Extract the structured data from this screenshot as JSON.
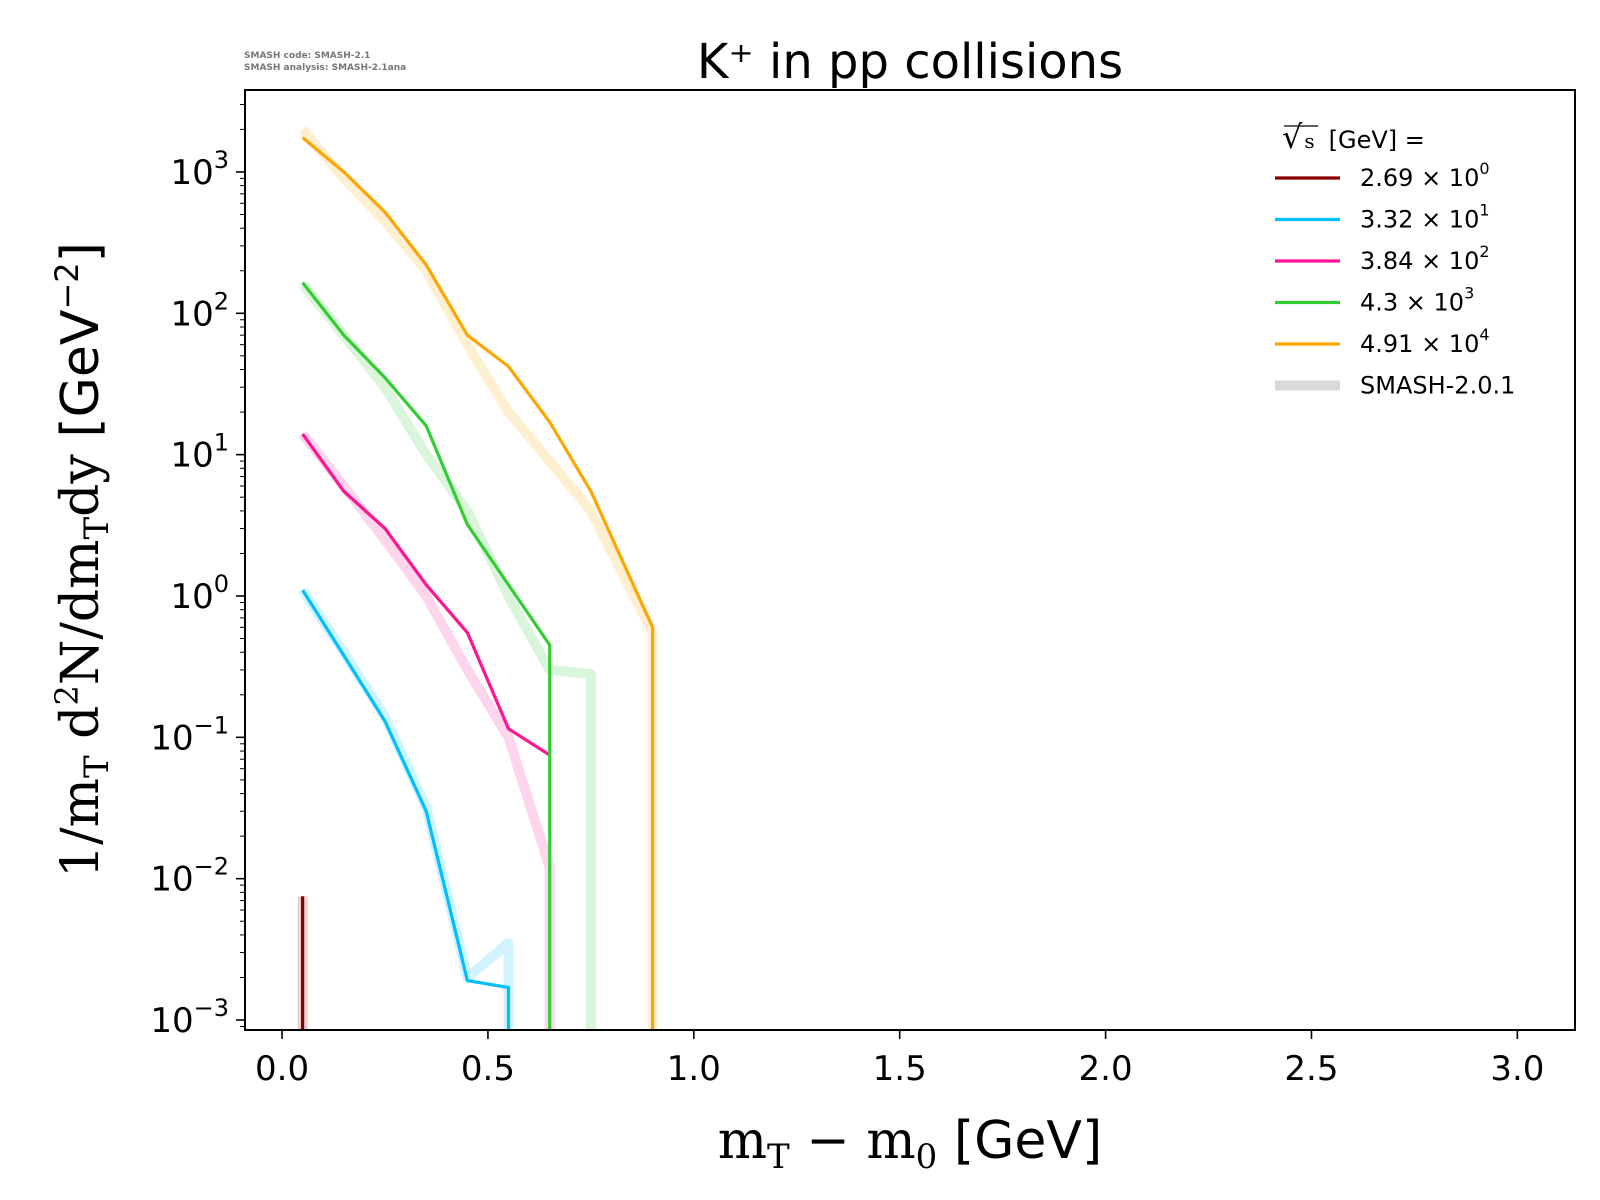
{
  "meta": {
    "code_line": "SMASH code:      SMASH-2.1",
    "analysis_line": "SMASH analysis: SMASH-2.1ana"
  },
  "chart_data": {
    "type": "line",
    "title": "K⁺ in pp collisions",
    "xlabel": "mT − m0 [GeV]",
    "ylabel": "1/mT d²N/dmTdy [GeV⁻²]",
    "yscale": "log",
    "xlim": [
      -0.09,
      3.14
    ],
    "ylim": [
      0.00085,
      3800
    ],
    "x_ticks": [
      0.0,
      0.5,
      1.0,
      1.5,
      2.0,
      2.5,
      3.0
    ],
    "x_tick_labels": [
      "0.0",
      "0.5",
      "1.0",
      "1.5",
      "2.0",
      "2.5",
      "3.0"
    ],
    "y_ticks": [
      0.001,
      0.01,
      0.1,
      1,
      10,
      100,
      1000
    ],
    "y_tick_labels": [
      [
        "10",
        "−3"
      ],
      [
        "10",
        "−2"
      ],
      [
        "10",
        "−1"
      ],
      [
        "10",
        "0"
      ],
      [
        "10",
        "1"
      ],
      [
        "10",
        "2"
      ],
      [
        "10",
        "3"
      ]
    ],
    "legend": {
      "title": "√s  [GeV] =",
      "sqrt_symbol": "√",
      "sqrt_var": "s",
      "title_rest": "[GeV] =",
      "position": "top-right",
      "reference_label": "SMASH-2.0.1",
      "reference_color": "#d9d9d9"
    },
    "series": [
      {
        "name": "2.69 × 10⁰",
        "mantissa": "2.69",
        "exponent": "0",
        "color": "#8b0000",
        "x": [
          0.05,
          0.05
        ],
        "y": [
          0.0075,
          0.0006
        ],
        "ref_x": [
          0.05,
          0.05
        ],
        "ref_y": [
          0.0075,
          0.0006
        ]
      },
      {
        "name": "3.32 × 10¹",
        "mantissa": "3.32",
        "exponent": "1",
        "color": "#00bfff",
        "x": [
          0.05,
          0.15,
          0.25,
          0.35,
          0.45,
          0.55,
          0.55
        ],
        "y": [
          1.1,
          0.38,
          0.13,
          0.03,
          0.0019,
          0.0017,
          0.0006
        ],
        "ref_x": [
          0.05,
          0.15,
          0.25,
          0.35,
          0.45,
          0.55,
          0.55
        ],
        "ref_y": [
          1.1,
          0.4,
          0.14,
          0.032,
          0.002,
          0.0035,
          0.0006
        ]
      },
      {
        "name": "3.84 × 10²",
        "mantissa": "3.84",
        "exponent": "2",
        "color": "#ff1493",
        "x": [
          0.05,
          0.15,
          0.25,
          0.35,
          0.45,
          0.55,
          0.65
        ],
        "y": [
          14,
          5.5,
          3.0,
          1.2,
          0.55,
          0.115,
          0.075
        ],
        "ref_x": [
          0.05,
          0.15,
          0.25,
          0.35,
          0.45,
          0.55,
          0.65,
          0.65
        ],
        "ref_y": [
          14,
          6.0,
          2.5,
          1.0,
          0.3,
          0.1,
          0.012,
          0.0006
        ]
      },
      {
        "name": "4.3 × 10³",
        "mantissa": "4.3",
        "exponent": "3",
        "color": "#32cd32",
        "x": [
          0.05,
          0.15,
          0.25,
          0.35,
          0.45,
          0.55,
          0.65,
          0.65
        ],
        "y": [
          165,
          70,
          35,
          16,
          3.2,
          1.2,
          0.45,
          0.0006
        ],
        "ref_x": [
          0.05,
          0.15,
          0.25,
          0.35,
          0.45,
          0.55,
          0.65,
          0.75,
          0.75
        ],
        "ref_y": [
          160,
          70,
          30,
          10,
          4.0,
          1.0,
          0.3,
          0.28,
          0.0006
        ]
      },
      {
        "name": "4.91 × 10⁴",
        "mantissa": "4.91",
        "exponent": "4",
        "color": "#ffa500",
        "x": [
          0.05,
          0.15,
          0.25,
          0.35,
          0.45,
          0.55,
          0.65,
          0.75,
          0.9,
          0.9
        ],
        "y": [
          1750,
          1000,
          520,
          220,
          70,
          42,
          17,
          5.5,
          0.6,
          0.0006
        ],
        "ref_x": [
          0.05,
          0.15,
          0.25,
          0.35,
          0.45,
          0.55,
          0.65,
          0.75,
          0.9,
          0.9
        ],
        "ref_y": [
          2000,
          900,
          450,
          200,
          60,
          20,
          9,
          4,
          0.55,
          0.0006
        ]
      }
    ]
  }
}
